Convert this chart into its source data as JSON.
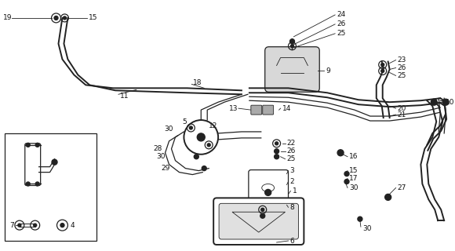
{
  "bg_color": "#ffffff",
  "line_color": "#222222",
  "text_color": "#111111",
  "lw_thick": 1.4,
  "lw_mid": 0.9,
  "lw_thin": 0.6,
  "fs": 6.5
}
